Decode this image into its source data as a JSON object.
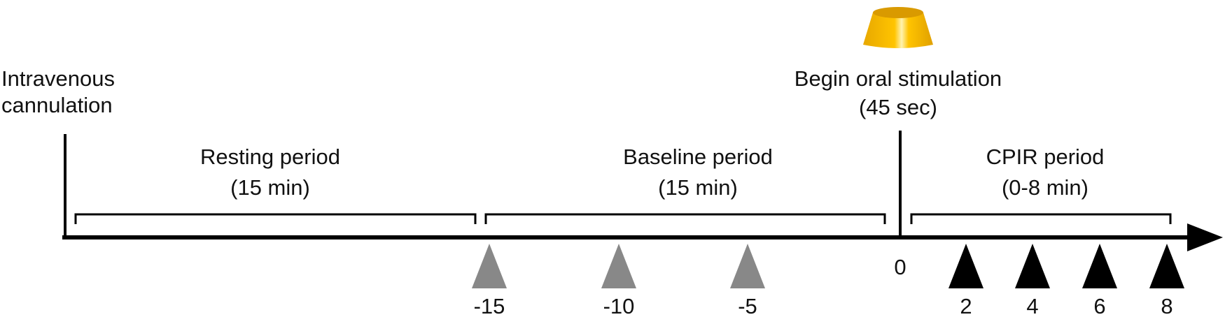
{
  "events": [
    {
      "label_lines": [
        "Intravenous",
        "cannulation"
      ]
    },
    {
      "label_lines": [
        "Begin oral stimulation",
        "(45 sec)"
      ]
    }
  ],
  "periods": [
    {
      "name": "Resting period",
      "duration": "(15 min)"
    },
    {
      "name": "Baseline period",
      "duration": "(15 min)"
    },
    {
      "name": "CPIR period",
      "duration": "(0-8 min)"
    }
  ],
  "zero_label": "0",
  "baseline_samples": [
    "-15",
    "-10",
    "-5"
  ],
  "cpir_samples": [
    "2",
    "4",
    "6",
    "8"
  ]
}
